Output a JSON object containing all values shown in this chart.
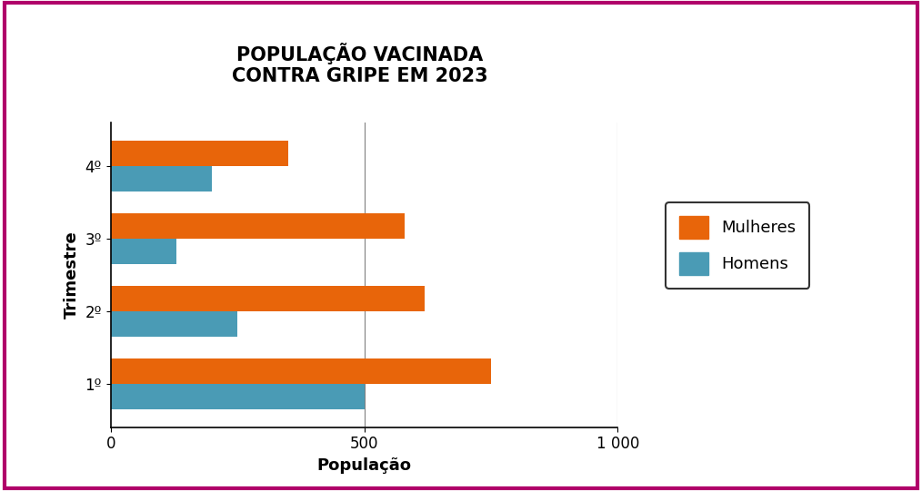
{
  "title": "POPULAÇÃO VACINADA\nCONTRA GRIPE EM 2023",
  "xlabel": "População",
  "ylabel": "Trimestre",
  "quarters": [
    "1º",
    "2º",
    "3º",
    "4º"
  ],
  "mulheres": [
    750,
    620,
    580,
    350
  ],
  "homens": [
    500,
    250,
    130,
    200
  ],
  "color_mulheres": "#E8650A",
  "color_homens": "#4A9BB5",
  "xlim": [
    0,
    1000
  ],
  "xticks": [
    0,
    500,
    1000
  ],
  "xticklabels": [
    "0",
    "500",
    "1 000"
  ],
  "grid_lines": [
    500,
    1000
  ],
  "bar_height": 0.35,
  "title_fontsize": 15,
  "label_fontsize": 13,
  "tick_fontsize": 12,
  "legend_fontsize": 13,
  "background_color": "#ffffff",
  "border_color": "#b0006a",
  "border_linewidth": 3
}
